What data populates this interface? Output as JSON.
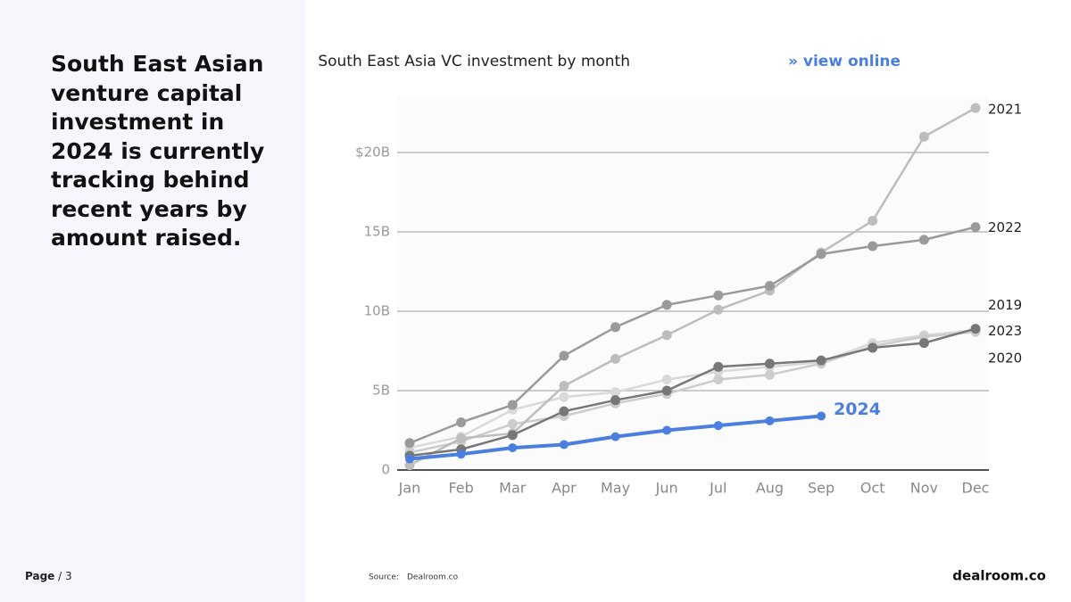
{
  "heading": "South East Asian venture capital investment in 2024 is currently tracking behind recent years by amount raised.",
  "footer": {
    "page": "Page",
    "page_number": "/ 3",
    "source_label": "Source:",
    "source": "Dealroom.co",
    "logo": "dealroom.co"
  },
  "chart_data": {
    "type": "line",
    "title": "South East Asia VC investment by month",
    "link": "» view online",
    "categories": [
      "Jan",
      "Feb",
      "Mar",
      "Apr",
      "May",
      "Jun",
      "Jul",
      "Aug",
      "Sep",
      "Oct",
      "Nov",
      "Dec"
    ],
    "ylim": [
      0,
      23.5
    ],
    "yticks": [
      0,
      {
        "value": 5,
        "label": "5B"
      },
      {
        "value": 10,
        "label": "10B"
      },
      {
        "value": 15,
        "label": "15B"
      },
      {
        "value": 20,
        "label": "$20B"
      }
    ],
    "grid": true,
    "series": [
      {
        "name": "2019",
        "color": "#d9d9d9",
        "values": [
          1.4,
          2.1,
          3.8,
          4.6,
          4.9,
          5.7,
          6.2,
          6.5,
          6.8,
          8.0,
          8.5,
          8.8
        ]
      },
      {
        "name": "2020",
        "color": "#cccccc",
        "values": [
          1.1,
          1.8,
          2.9,
          3.4,
          4.2,
          4.8,
          5.7,
          6.0,
          6.7,
          7.8,
          8.4,
          8.7
        ]
      },
      {
        "name": "2021",
        "color": "#bdbdbd",
        "values": [
          0.3,
          2.0,
          2.3,
          5.3,
          7.0,
          8.5,
          10.1,
          11.3,
          13.7,
          15.7,
          21.0,
          22.8
        ]
      },
      {
        "name": "2022",
        "color": "#9a9a9a",
        "values": [
          1.7,
          3.0,
          4.1,
          7.2,
          9.0,
          10.4,
          11.0,
          11.6,
          13.6,
          14.1,
          14.5,
          15.3
        ]
      },
      {
        "name": "2023",
        "color": "#777777",
        "values": [
          0.9,
          1.3,
          2.2,
          3.7,
          4.4,
          5.0,
          6.5,
          6.7,
          6.9,
          7.7,
          8.0,
          8.9
        ]
      },
      {
        "name": "2024",
        "color": "#4a7fe0",
        "values": [
          0.7,
          1.0,
          1.4,
          1.6,
          2.1,
          2.5,
          2.8,
          3.1,
          3.4,
          null,
          null,
          null
        ]
      }
    ]
  }
}
